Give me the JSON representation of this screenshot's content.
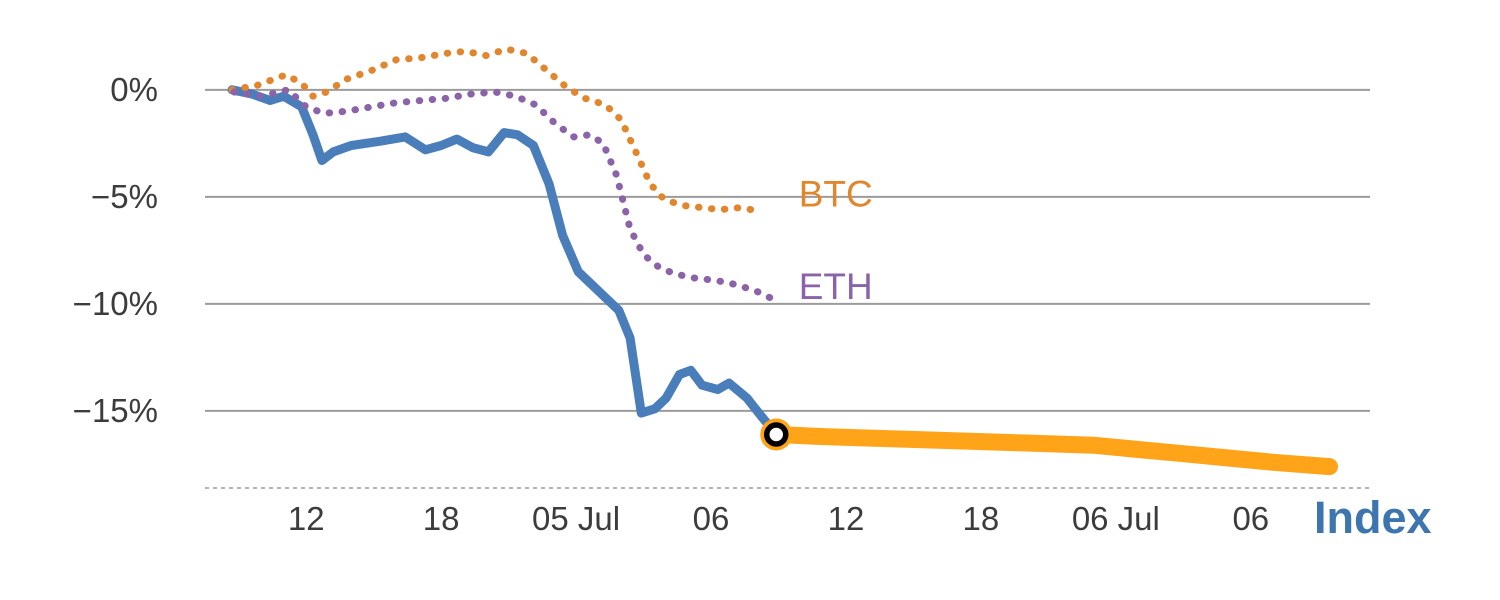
{
  "figure": {
    "background": "#ffffff"
  },
  "chart_data": {
    "type": "line",
    "title": "",
    "xlabel": "",
    "ylabel": "",
    "x_unit_note": "hours since 04 Jul 00:00, 6-hour tick spacing",
    "xlim": [
      7.5,
      59.3
    ],
    "ylim": [
      -18.6,
      2.0
    ],
    "grid": "horizontal",
    "legend_position": "inline-labels",
    "y_ticks": [
      {
        "value": 0,
        "label": "0%"
      },
      {
        "value": -5,
        "label": "−5%"
      },
      {
        "value": -10,
        "label": "−10%"
      },
      {
        "value": -15,
        "label": "−15%"
      }
    ],
    "x_ticks": [
      {
        "value": 12,
        "label": "12"
      },
      {
        "value": 18,
        "label": "18"
      },
      {
        "value": 24,
        "label": "05 Jul"
      },
      {
        "value": 30,
        "label": "06"
      },
      {
        "value": 36,
        "label": "12"
      },
      {
        "value": 42,
        "label": "18"
      },
      {
        "value": 48,
        "label": "06 Jul"
      },
      {
        "value": 54,
        "label": "06"
      }
    ],
    "series": [
      {
        "name": "Index",
        "style": "solid",
        "color": "#4A7EBB",
        "points": [
          [
            8.7,
            0.0
          ],
          [
            9.6,
            -0.2
          ],
          [
            10.4,
            -0.5
          ],
          [
            11.0,
            -0.3
          ],
          [
            11.8,
            -0.8
          ],
          [
            12.3,
            -2.1
          ],
          [
            12.7,
            -3.3
          ],
          [
            13.2,
            -2.9
          ],
          [
            14.0,
            -2.6
          ],
          [
            15.3,
            -2.4
          ],
          [
            16.4,
            -2.2
          ],
          [
            17.3,
            -2.8
          ],
          [
            18.0,
            -2.6
          ],
          [
            18.7,
            -2.3
          ],
          [
            19.4,
            -2.7
          ],
          [
            20.1,
            -2.9
          ],
          [
            20.8,
            -2.0
          ],
          [
            21.4,
            -2.1
          ],
          [
            22.1,
            -2.6
          ],
          [
            22.8,
            -4.4
          ],
          [
            23.4,
            -6.8
          ],
          [
            24.1,
            -8.5
          ],
          [
            24.8,
            -9.2
          ],
          [
            25.3,
            -9.7
          ],
          [
            25.9,
            -10.3
          ],
          [
            26.4,
            -11.6
          ],
          [
            26.9,
            -15.1
          ],
          [
            27.5,
            -14.9
          ],
          [
            28.0,
            -14.4
          ],
          [
            28.6,
            -13.3
          ],
          [
            29.1,
            -13.1
          ],
          [
            29.6,
            -13.8
          ],
          [
            30.3,
            -14.0
          ],
          [
            30.8,
            -13.7
          ],
          [
            31.6,
            -14.4
          ],
          [
            32.2,
            -15.2
          ],
          [
            32.9,
            -16.1
          ]
        ]
      },
      {
        "name": "Index projection",
        "style": "band",
        "color": "#FFA419",
        "points": [
          [
            32.9,
            -16.1
          ],
          [
            35.0,
            -16.2
          ],
          [
            38.0,
            -16.3
          ],
          [
            41.0,
            -16.4
          ],
          [
            44.0,
            -16.5
          ],
          [
            47.0,
            -16.6
          ],
          [
            49.0,
            -16.8
          ],
          [
            51.0,
            -17.0
          ],
          [
            53.0,
            -17.2
          ],
          [
            55.0,
            -17.4
          ],
          [
            57.5,
            -17.6
          ]
        ]
      },
      {
        "name": "BTC",
        "style": "dotted",
        "color": "#E1862C",
        "label": {
          "text": "BTC",
          "x": 33.9,
          "y": -4.9
        },
        "points": [
          [
            8.7,
            0.0
          ],
          [
            9.8,
            0.2
          ],
          [
            11.1,
            0.7
          ],
          [
            11.8,
            0.3
          ],
          [
            12.3,
            -0.3
          ],
          [
            12.9,
            -0.1
          ],
          [
            13.8,
            0.5
          ],
          [
            14.9,
            0.9
          ],
          [
            16.0,
            1.4
          ],
          [
            17.1,
            1.5
          ],
          [
            18.2,
            1.7
          ],
          [
            19.1,
            1.8
          ],
          [
            20.0,
            1.6
          ],
          [
            20.9,
            1.9
          ],
          [
            21.8,
            1.7
          ],
          [
            22.7,
            0.9
          ],
          [
            23.6,
            0.1
          ],
          [
            24.4,
            -0.4
          ],
          [
            25.3,
            -0.7
          ],
          [
            26.0,
            -1.4
          ],
          [
            26.7,
            -3.0
          ],
          [
            27.3,
            -4.4
          ],
          [
            27.9,
            -5.1
          ],
          [
            28.7,
            -5.4
          ],
          [
            29.6,
            -5.5
          ],
          [
            30.4,
            -5.6
          ],
          [
            31.3,
            -5.5
          ],
          [
            32.3,
            -5.7
          ]
        ]
      },
      {
        "name": "ETH",
        "style": "dotted",
        "color": "#8A63A8",
        "label": {
          "text": "ETH",
          "x": 33.9,
          "y": -9.2
        },
        "points": [
          [
            8.8,
            -0.1
          ],
          [
            10.0,
            -0.3
          ],
          [
            11.2,
            0.0
          ],
          [
            12.0,
            -0.8
          ],
          [
            12.8,
            -1.1
          ],
          [
            13.8,
            -1.0
          ],
          [
            14.9,
            -0.8
          ],
          [
            16.0,
            -0.6
          ],
          [
            17.1,
            -0.5
          ],
          [
            18.2,
            -0.4
          ],
          [
            19.3,
            -0.2
          ],
          [
            20.4,
            -0.1
          ],
          [
            21.3,
            -0.3
          ],
          [
            22.2,
            -0.7
          ],
          [
            23.1,
            -1.6
          ],
          [
            23.9,
            -2.2
          ],
          [
            24.6,
            -2.1
          ],
          [
            25.2,
            -2.5
          ],
          [
            25.8,
            -4.0
          ],
          [
            26.4,
            -6.5
          ],
          [
            27.0,
            -7.7
          ],
          [
            27.7,
            -8.3
          ],
          [
            28.4,
            -8.6
          ],
          [
            29.3,
            -8.8
          ],
          [
            30.2,
            -8.9
          ],
          [
            31.1,
            -9.1
          ],
          [
            32.0,
            -9.4
          ],
          [
            32.8,
            -9.8
          ]
        ]
      }
    ],
    "marker": {
      "x": 32.9,
      "y": -16.1,
      "ring_color": "#000000",
      "fill_color": "#FFA419"
    },
    "axis_label": {
      "text": "Index",
      "color": "#3D76AE"
    },
    "style_hints": {
      "gridline_color": "#9B9B9B",
      "axis_dash_color": "#B3B3B3",
      "tick_label_color": "#3C3C3C"
    }
  }
}
